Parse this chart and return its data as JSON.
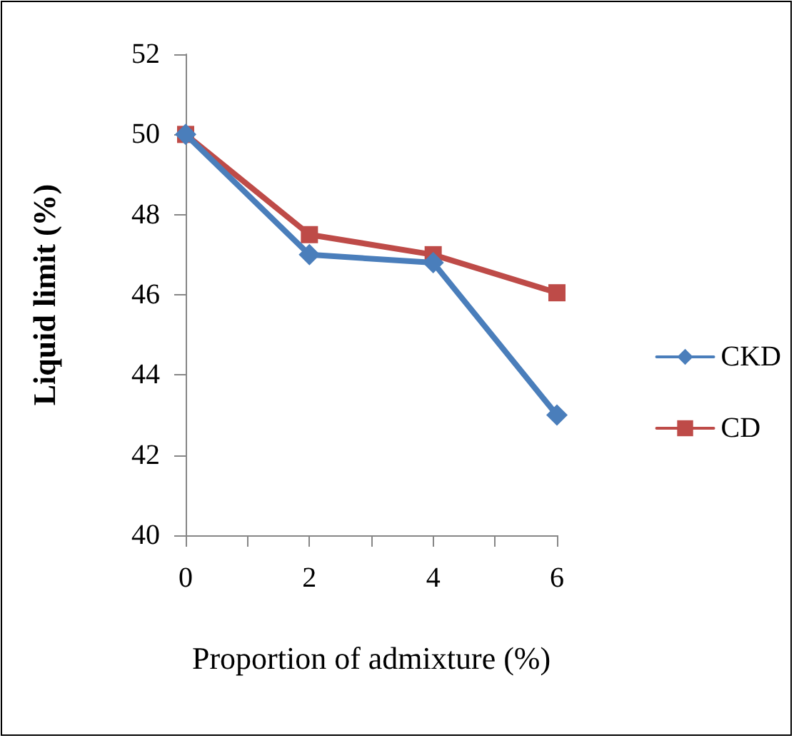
{
  "chart_data": {
    "type": "line",
    "xlabel": "Proportion of admixture (%)",
    "ylabel": "Liquid limit (%)",
    "x": [
      0,
      2,
      4,
      6
    ],
    "series": [
      {
        "name": "CKD",
        "color": "#4a7ebb",
        "values": [
          50,
          47,
          46.8,
          43
        ],
        "marker": "diamond"
      },
      {
        "name": "CD",
        "color": "#be4b48",
        "values": [
          50,
          47.5,
          47,
          46.05
        ],
        "marker": "square"
      }
    ],
    "xlim": [
      0,
      6
    ],
    "xticks": [
      0,
      {
        "value": 1,
        "label": null
      },
      2,
      {
        "value": 3,
        "label": null
      },
      4,
      {
        "value": 5,
        "label": null
      },
      6
    ],
    "ylim": [
      40,
      52
    ],
    "yticks": [
      40,
      42,
      44,
      46,
      48,
      50,
      52
    ],
    "grid": false,
    "legend": "right",
    "line_style": "solid"
  }
}
